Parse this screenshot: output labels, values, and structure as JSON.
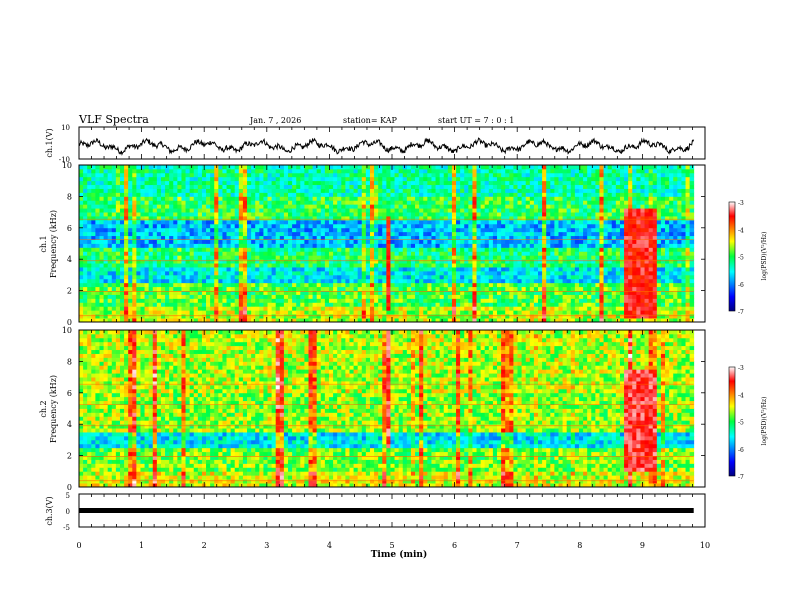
{
  "header": {
    "title": "VLF Spectra",
    "date": "Jan. 7 , 2026",
    "station": "station= KAP",
    "start_ut": "start UT =  7 : 0 : 1"
  },
  "chart_data": [
    {
      "type": "line",
      "name": "ch1-waveform",
      "ylabel": "ch.1(V)",
      "ylim": [
        -10,
        10
      ],
      "yticks": [
        "10",
        "-10"
      ],
      "xlim": [
        0,
        9.82
      ],
      "note": "wideband amplitude trace, roughly between -5 and 3 V"
    },
    {
      "type": "heatmap",
      "name": "ch1-spectrogram",
      "ylabel": "ch.1 Frequency (kHz)",
      "ylim": [
        0,
        10
      ],
      "yticks": [
        "0",
        "2",
        "4",
        "6",
        "8",
        "10"
      ],
      "xlim": [
        0,
        9.82
      ],
      "zlabel": "log(PSD)(V²/Hz)",
      "zlim": [
        -7,
        -3
      ],
      "events": [
        {
          "t_start": 4.88,
          "t_end": 5.0,
          "f_low": 0.8,
          "f_high": 6.8,
          "level": -3.6
        },
        {
          "t_start": 8.7,
          "t_end": 9.25,
          "f_low": 0.3,
          "f_high": 7.2,
          "level": -3.5
        }
      ]
    },
    {
      "type": "heatmap",
      "name": "ch2-spectrogram",
      "ylabel": "ch.2 Frequency (kHz)",
      "ylim": [
        0,
        10
      ],
      "yticks": [
        "0",
        "2",
        "4",
        "6",
        "8",
        "10"
      ],
      "xlim": [
        0,
        9.82
      ],
      "zlabel": "log(PSD)(V²/Hz)",
      "zlim": [
        -7,
        -3
      ],
      "events": [
        {
          "t_start": 4.88,
          "t_end": 5.0,
          "f_low": 2.5,
          "f_high": 10,
          "level": -3.4
        },
        {
          "t_start": 8.7,
          "t_end": 9.25,
          "f_low": 1.0,
          "f_high": 7.5,
          "level": -3.4
        }
      ]
    },
    {
      "type": "line",
      "name": "ch3-trace",
      "ylabel": "ch.3(V)",
      "ylim": [
        -5,
        5
      ],
      "yticks": [
        "5",
        "0",
        "-5"
      ],
      "xlim": [
        0,
        9.82
      ],
      "level": 0
    }
  ],
  "xaxis": {
    "label": "Time (min)",
    "range": [
      0,
      10
    ],
    "ticks": [
      "0",
      "1",
      "2",
      "3",
      "4",
      "5",
      "6",
      "7",
      "8",
      "9",
      "10"
    ]
  },
  "colorbar": {
    "ticks": [
      "-3",
      "-4",
      "-5",
      "-6",
      "-7"
    ],
    "label": "log(PSD)(V²/Hz)"
  }
}
